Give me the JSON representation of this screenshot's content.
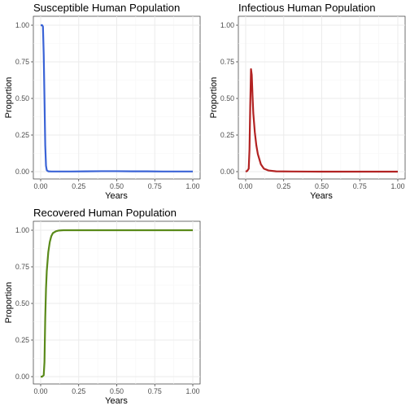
{
  "chart_data": [
    {
      "type": "line",
      "title": "Susceptible Human Population",
      "xlabel": "Years",
      "ylabel": "Proportion",
      "xlim": [
        0,
        1
      ],
      "ylim": [
        0,
        1
      ],
      "x_ticks": [
        "0.00",
        "0.25",
        "0.50",
        "0.75",
        "1.00"
      ],
      "y_ticks": [
        "0.00",
        "0.25",
        "0.50",
        "0.75",
        "1.00"
      ],
      "grid": true,
      "color": "#3a63d6",
      "series": [
        {
          "x": [
            0.0,
            0.01,
            0.015,
            0.02,
            0.025,
            0.03,
            0.035,
            0.04,
            0.05,
            0.07,
            0.1,
            0.2,
            0.3,
            0.4,
            0.5,
            0.6,
            0.7,
            0.8,
            0.9,
            1.0
          ],
          "values": [
            1.0,
            1.0,
            0.99,
            0.8,
            0.5,
            0.18,
            0.04,
            0.01,
            0.002,
            0.001,
            0.001,
            0.001,
            0.002,
            0.003,
            0.003,
            0.002,
            0.002,
            0.001,
            0.001,
            0.001
          ]
        }
      ]
    },
    {
      "type": "line",
      "title": "Infectious Human Population",
      "xlabel": "Years",
      "ylabel": "Proportion",
      "xlim": [
        0,
        1
      ],
      "ylim": [
        0,
        1
      ],
      "x_ticks": [
        "0.00",
        "0.25",
        "0.50",
        "0.75",
        "1.00"
      ],
      "y_ticks": [
        "0.00",
        "0.25",
        "0.50",
        "0.75",
        "1.00"
      ],
      "grid": true,
      "color": "#b22222",
      "series": [
        {
          "x": [
            0.0,
            0.01,
            0.02,
            0.025,
            0.03,
            0.035,
            0.04,
            0.045,
            0.05,
            0.06,
            0.07,
            0.08,
            0.1,
            0.12,
            0.15,
            0.2,
            0.3,
            0.5,
            0.75,
            1.0
          ],
          "values": [
            0.0,
            0.005,
            0.02,
            0.15,
            0.45,
            0.7,
            0.66,
            0.52,
            0.4,
            0.27,
            0.18,
            0.12,
            0.05,
            0.02,
            0.008,
            0.002,
            0.001,
            0.0,
            0.0,
            0.0
          ]
        }
      ]
    },
    {
      "type": "line",
      "title": "Recovered Human Population",
      "xlabel": "Years",
      "ylabel": "Proportion",
      "xlim": [
        0,
        1
      ],
      "ylim": [
        0,
        1
      ],
      "x_ticks": [
        "0.00",
        "0.25",
        "0.50",
        "0.75",
        "1.00"
      ],
      "y_ticks": [
        "0.00",
        "0.25",
        "0.50",
        "0.75",
        "1.00"
      ],
      "grid": true,
      "color": "#5a8a1a",
      "series": [
        {
          "x": [
            0.0,
            0.01,
            0.02,
            0.025,
            0.03,
            0.035,
            0.04,
            0.05,
            0.06,
            0.07,
            0.08,
            0.1,
            0.12,
            0.15,
            0.2,
            0.3,
            0.5,
            0.75,
            1.0
          ],
          "values": [
            0.0,
            0.0,
            0.01,
            0.1,
            0.4,
            0.6,
            0.72,
            0.85,
            0.92,
            0.96,
            0.98,
            0.993,
            0.998,
            1.0,
            1.0,
            1.0,
            1.0,
            1.0,
            1.0
          ]
        }
      ]
    }
  ]
}
